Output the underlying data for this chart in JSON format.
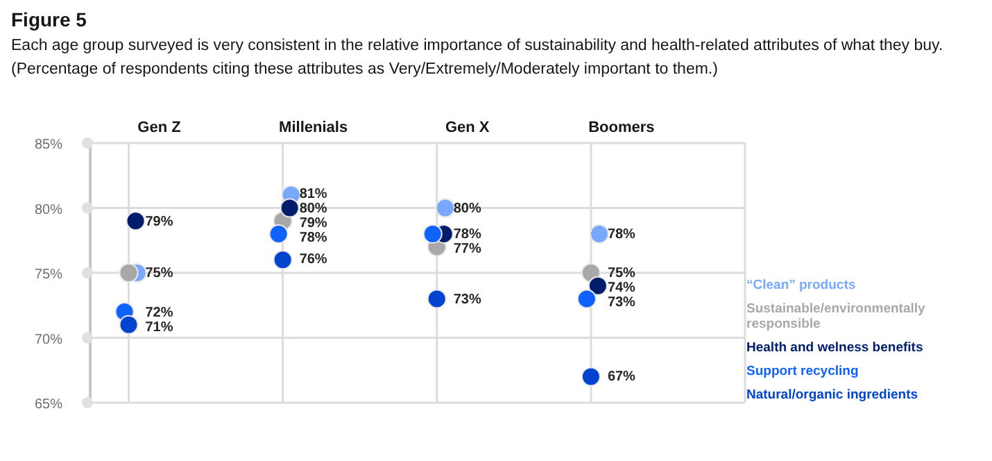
{
  "chart_data": {
    "type": "scatter",
    "title": "Figure 5",
    "subtitle": "Each age group surveyed is very consistent in the relative importance of sustainability and health-related attributes of what they buy. (Percentage of respondents citing these attributes as Very/Extremely/Moderately important to them.)",
    "categories": [
      "Gen Z",
      "Millenials",
      "Gen X",
      "Boomers"
    ],
    "series": [
      {
        "name": "“Clean” products",
        "color": "#78a9ff",
        "values": [
          75,
          81,
          80,
          78
        ],
        "value_labels": [
          null,
          "81%",
          "80%",
          "78%"
        ]
      },
      {
        "name": "Sustainable/environmentally responsible",
        "color": "#a8a8a8",
        "values": [
          75,
          79,
          77,
          75
        ],
        "value_labels": [
          "75%",
          "79%",
          "77%",
          "75%"
        ]
      },
      {
        "name": "Health and welness benefits",
        "color": "#001d6c",
        "values": [
          79,
          80,
          78,
          74
        ],
        "value_labels": [
          "79%",
          "80%",
          null,
          "74%"
        ]
      },
      {
        "name": "Support recycling",
        "color": "#0f62fe",
        "values": [
          72,
          78,
          78,
          73
        ],
        "value_labels": [
          "72%",
          "78%",
          "78%",
          "73%"
        ]
      },
      {
        "name": "Natural/organic ingredients",
        "color": "#0043ce",
        "values": [
          71,
          76,
          73,
          67
        ],
        "value_labels": [
          "71%",
          "76%",
          "73%",
          "67%"
        ]
      }
    ],
    "ylim": [
      65,
      85
    ],
    "yticks": [
      {
        "value": 65,
        "label": "65%"
      },
      {
        "value": 70,
        "label": "70%"
      },
      {
        "value": 75,
        "label": "75%"
      },
      {
        "value": 80,
        "label": "80%"
      },
      {
        "value": 85,
        "label": "85%"
      }
    ],
    "grid": true,
    "legend": "bottom right",
    "marker": "circle"
  }
}
